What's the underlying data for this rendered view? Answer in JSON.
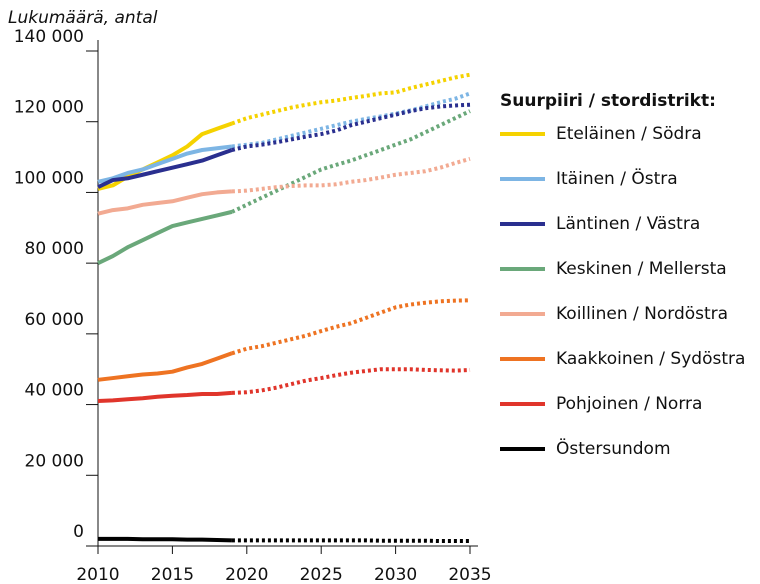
{
  "chart_data": {
    "type": "line",
    "title": "Lukumäärä, antal",
    "legend_title": "Suurpiiri / stordistrikt:",
    "x": [
      2010,
      2011,
      2012,
      2013,
      2014,
      2015,
      2016,
      2017,
      2018,
      2019,
      2020,
      2021,
      2022,
      2023,
      2024,
      2025,
      2026,
      2027,
      2028,
      2029,
      2030,
      2031,
      2032,
      2033,
      2034,
      2035
    ],
    "xlim": [
      2010,
      2035
    ],
    "xticks": [
      2010,
      2015,
      2020,
      2025,
      2030,
      2035
    ],
    "ylim": [
      0,
      140000
    ],
    "yticks": [
      0,
      {
        "value": 20000,
        "label": "20 000"
      },
      {
        "value": 40000,
        "label": "40 000"
      },
      {
        "value": 60000,
        "label": "60 000"
      },
      {
        "value": 80000,
        "label": "80 000"
      },
      {
        "value": 100000,
        "label": "100 000"
      },
      {
        "value": 120000,
        "label": "120 000"
      },
      {
        "value": 140000,
        "label": "140 000"
      }
    ],
    "grid": false,
    "legend": "right",
    "dashed_from": 2019,
    "series": [
      {
        "name": "Eteläinen / Södra",
        "color": "#f5d200",
        "values": [
          101000,
          102000,
          104500,
          106500,
          108500,
          110500,
          113000,
          116500,
          118000,
          119500,
          121000,
          122000,
          123000,
          124000,
          124800,
          125500,
          126000,
          126700,
          127300,
          128000,
          128300,
          129500,
          130500,
          131500,
          132500,
          133300
        ]
      },
      {
        "name": "Itäinen / Östra",
        "color": "#7db5e4",
        "values": [
          103000,
          104000,
          105500,
          106500,
          108000,
          109500,
          111000,
          112000,
          112500,
          113000,
          113500,
          114000,
          115000,
          116000,
          117000,
          118000,
          119000,
          120000,
          120800,
          121500,
          122300,
          123200,
          124300,
          125500,
          126500,
          128000
        ]
      },
      {
        "name": "Läntinen / Västra",
        "color": "#2a2f8f",
        "values": [
          101500,
          103500,
          104000,
          105000,
          106000,
          107000,
          108000,
          109000,
          110500,
          112000,
          113000,
          113500,
          114200,
          115000,
          115800,
          116500,
          117500,
          119000,
          120000,
          121000,
          122000,
          123000,
          123800,
          124300,
          124600,
          124800
        ]
      },
      {
        "name": "Keskinen / Mellersta",
        "color": "#6aa87a",
        "values": [
          80000,
          82000,
          84500,
          86500,
          88500,
          90500,
          91500,
          92500,
          93500,
          94500,
          96500,
          98500,
          100500,
          102500,
          104500,
          106500,
          107800,
          109000,
          110500,
          112000,
          113500,
          115000,
          117000,
          119000,
          121000,
          123000
        ]
      },
      {
        "name": "Koillinen / Nordöstra",
        "color": "#f2aa92",
        "values": [
          94000,
          95000,
          95500,
          96500,
          97000,
          97500,
          98500,
          99500,
          100000,
          100300,
          100500,
          101000,
          101500,
          101800,
          102000,
          102000,
          102300,
          103000,
          103500,
          104200,
          105000,
          105500,
          106000,
          107000,
          108300,
          109500
        ]
      },
      {
        "name": "Kaakkoinen / Sydöstra",
        "color": "#ee7322",
        "values": [
          47000,
          47500,
          48000,
          48500,
          48800,
          49300,
          50500,
          51500,
          53000,
          54500,
          55800,
          56500,
          57500,
          58500,
          59500,
          60800,
          62000,
          63000,
          64500,
          66000,
          67500,
          68300,
          68800,
          69200,
          69400,
          69500
        ]
      },
      {
        "name": "Pohjoinen / Norra",
        "color": "#e0352b",
        "values": [
          41000,
          41200,
          41500,
          41800,
          42200,
          42500,
          42700,
          43000,
          43000,
          43300,
          43500,
          44000,
          44800,
          45800,
          46800,
          47500,
          48300,
          49000,
          49500,
          50000,
          50000,
          50000,
          49800,
          49700,
          49600,
          49800
        ]
      },
      {
        "name": "Östersundom",
        "color": "#000000",
        "values": [
          2000,
          2000,
          2000,
          1900,
          1900,
          1900,
          1800,
          1800,
          1700,
          1600,
          1600,
          1600,
          1600,
          1600,
          1600,
          1600,
          1600,
          1600,
          1600,
          1500,
          1500,
          1500,
          1500,
          1400,
          1400,
          1400
        ]
      }
    ]
  }
}
